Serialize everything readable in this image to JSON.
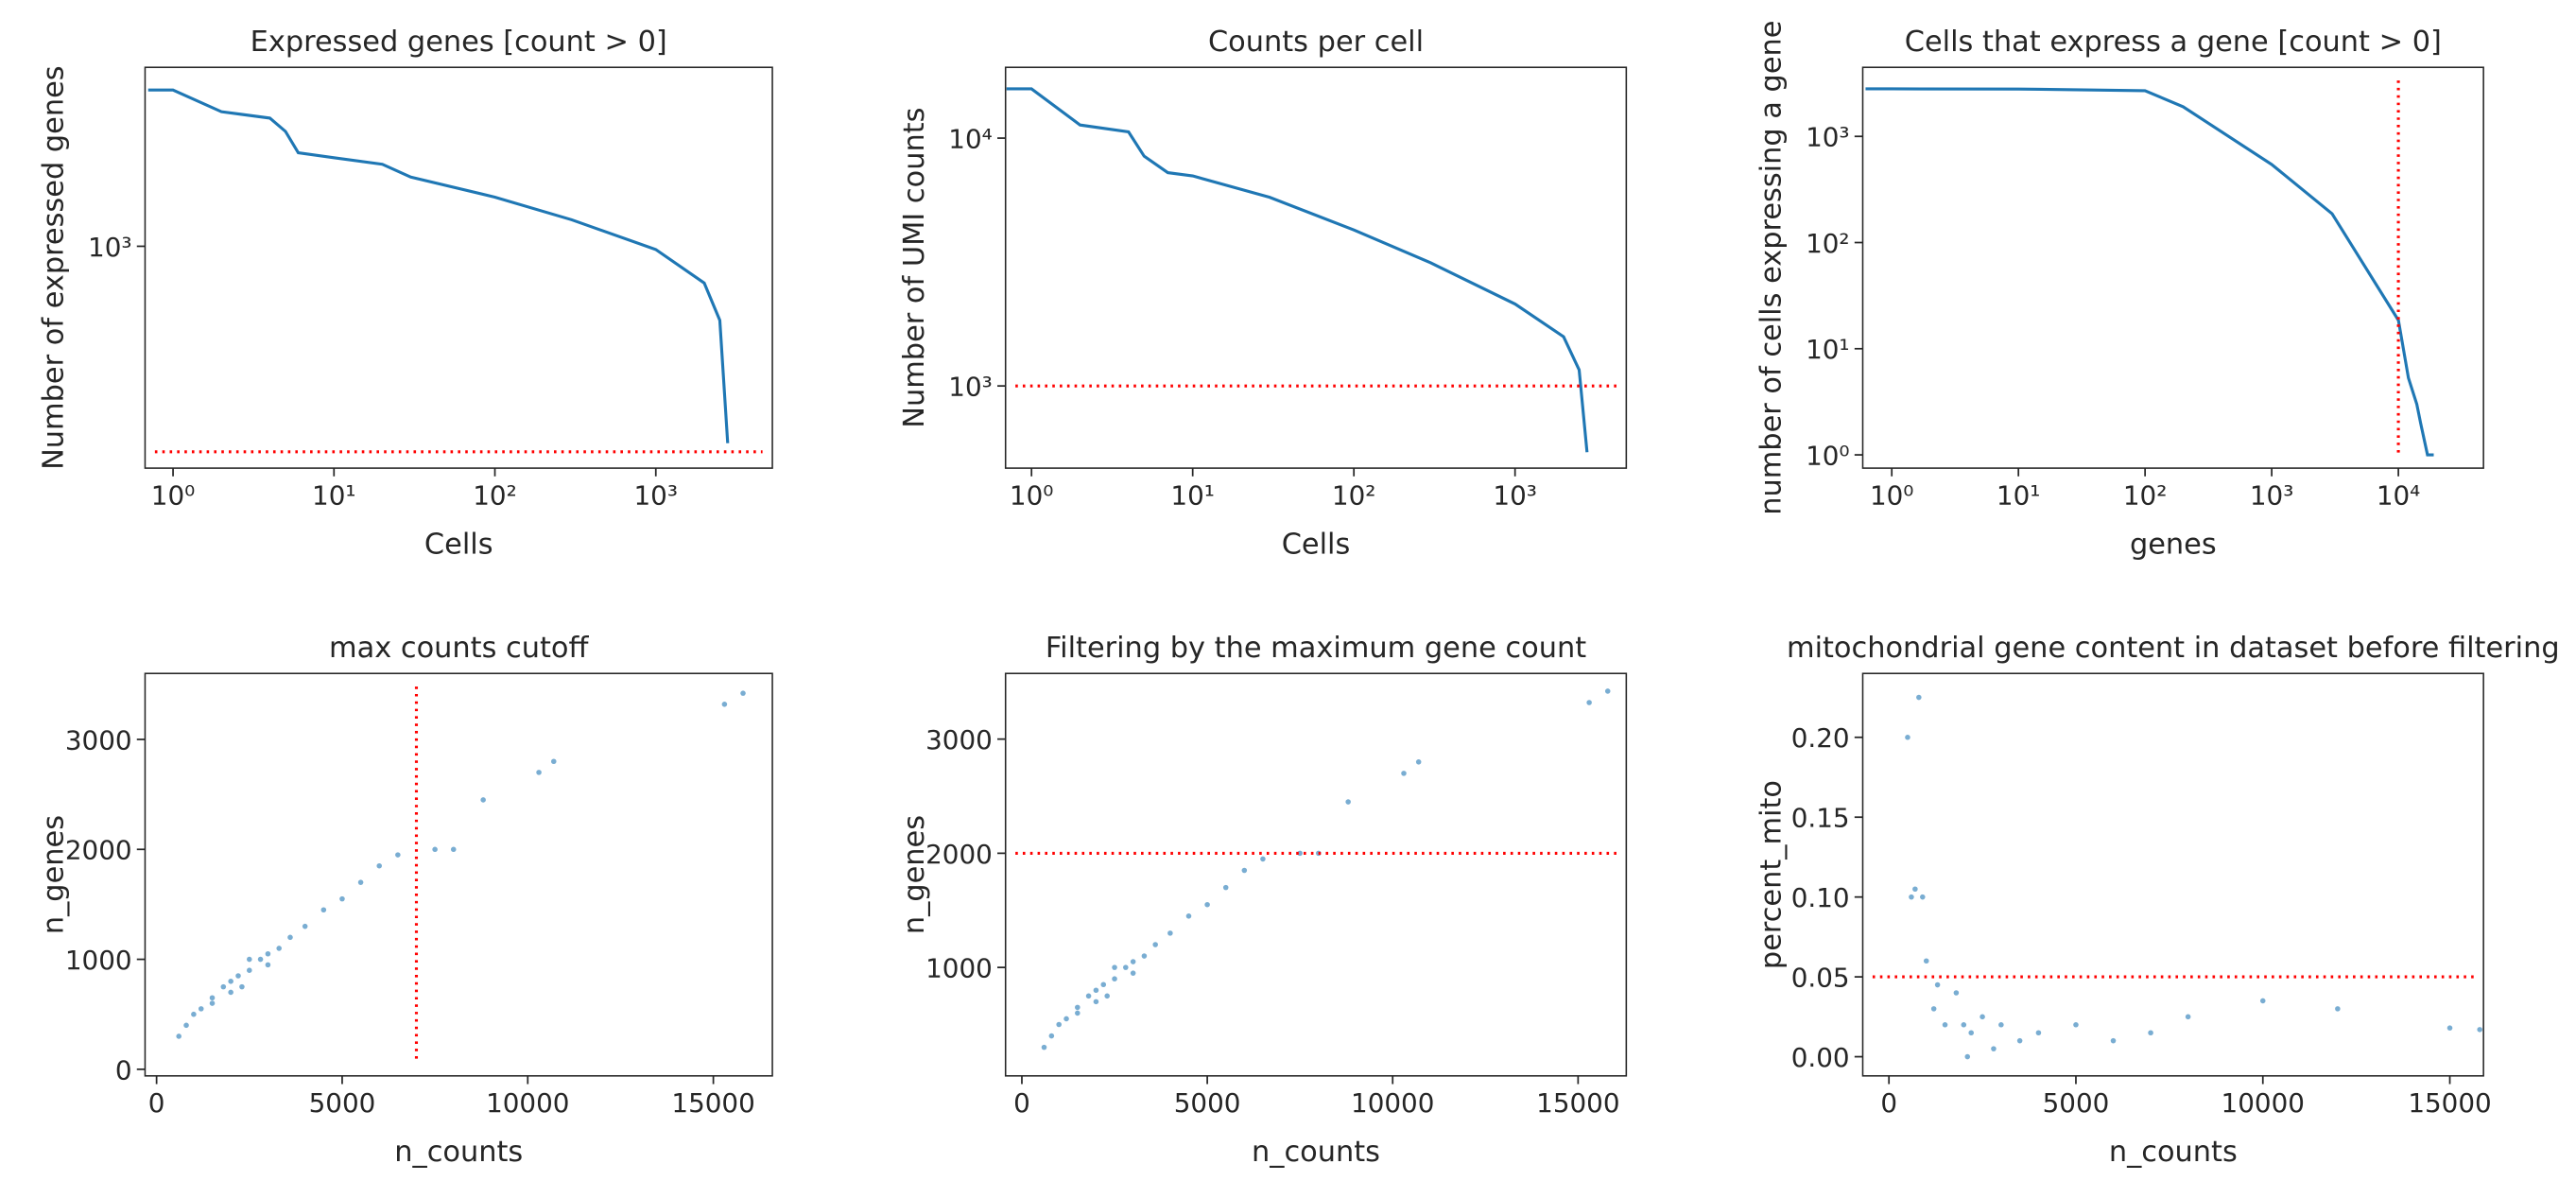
{
  "chart_data": [
    {
      "type": "line",
      "title": "Expressed genes [count > 0]",
      "x_label": "Cells",
      "y_label": "Number of expressed genes",
      "xscale": "log",
      "yscale": "log",
      "xlim": [
        0.67,
        5300
      ],
      "ylim": [
        176,
        4060
      ],
      "xticks": [
        {
          "value": 1,
          "label": "10⁰"
        },
        {
          "value": 10,
          "label": "10¹"
        },
        {
          "value": 100,
          "label": "10²"
        },
        {
          "value": 1000,
          "label": "10³"
        }
      ],
      "yticks": [
        {
          "value": 1000,
          "label": "10³"
        }
      ],
      "color": "#1f77b4",
      "x": [
        0.7,
        1,
        2,
        4,
        5,
        6,
        10,
        20,
        30,
        100,
        300,
        1000,
        2000,
        2500,
        2800
      ],
      "values": [
        3400,
        3400,
        2870,
        2730,
        2460,
        2080,
        2000,
        1900,
        1720,
        1470,
        1230,
        975,
        750,
        560,
        214
      ],
      "ref_lines": [
        {
          "orientation": "h",
          "value": 200,
          "color": "#ff0000"
        }
      ]
    },
    {
      "type": "line",
      "title": "Counts per cell",
      "x_label": "Cells",
      "y_label": "Number of UMI counts",
      "xscale": "log",
      "yscale": "log",
      "xlim": [
        0.69,
        4900
      ],
      "ylim": [
        466,
        19300
      ],
      "xticks": [
        {
          "value": 1,
          "label": "10⁰"
        },
        {
          "value": 10,
          "label": "10¹"
        },
        {
          "value": 100,
          "label": "10²"
        },
        {
          "value": 1000,
          "label": "10³"
        }
      ],
      "yticks": [
        {
          "value": 1000,
          "label": "10³"
        },
        {
          "value": 10000,
          "label": "10⁴"
        }
      ],
      "color": "#1f77b4",
      "x": [
        0.7,
        1,
        2,
        4,
        5,
        7,
        10,
        30,
        100,
        300,
        1000,
        2000,
        2500,
        2800
      ],
      "values": [
        15800,
        15800,
        11300,
        10600,
        8450,
        7260,
        7040,
        5770,
        4260,
        3140,
        2140,
        1580,
        1160,
        540
      ],
      "ref_lines": [
        {
          "orientation": "h",
          "value": 1000,
          "color": "#ff0000"
        }
      ]
    },
    {
      "type": "line",
      "title": "Cells that express a gene [count > 0]",
      "x_label": "genes",
      "y_label": "number of cells expressing a gene",
      "xscale": "log",
      "yscale": "log",
      "xlim": [
        0.59,
        47000
      ],
      "ylim": [
        0.75,
        4470
      ],
      "xticks": [
        {
          "value": 1,
          "label": "10⁰"
        },
        {
          "value": 10,
          "label": "10¹"
        },
        {
          "value": 100,
          "label": "10²"
        },
        {
          "value": 1000,
          "label": "10³"
        },
        {
          "value": 10000,
          "label": "10⁴"
        }
      ],
      "yticks": [
        {
          "value": 1,
          "label": "10⁰"
        },
        {
          "value": 10,
          "label": "10¹"
        },
        {
          "value": 100,
          "label": "10²"
        },
        {
          "value": 1000,
          "label": "10³"
        }
      ],
      "color": "#1f77b4",
      "x": [
        0.62,
        1,
        10,
        100,
        200,
        1000,
        3000,
        10000,
        12000,
        14000,
        15000,
        17000,
        19000
      ],
      "values": [
        2800,
        2800,
        2790,
        2700,
        1900,
        545,
        187,
        18.5,
        5.3,
        3,
        2,
        1,
        1
      ],
      "ref_lines": [
        {
          "orientation": "v",
          "value": 10000,
          "color": "#ff0000"
        }
      ]
    },
    {
      "type": "scatter",
      "title": "max counts cutoff",
      "x_label": "n_counts",
      "y_label": "n_genes",
      "xlim": [
        -310,
        16590
      ],
      "ylim": [
        -60,
        3600
      ],
      "xticks": [
        0,
        5000,
        10000,
        15000
      ],
      "yticks": [
        0,
        1000,
        2000,
        3000
      ],
      "color": "#1f77b4",
      "x": [
        600,
        800,
        1000,
        1200,
        1500,
        1500,
        1800,
        2000,
        2000,
        2200,
        2300,
        2500,
        2500,
        2800,
        3000,
        3000,
        3300,
        3600,
        4000,
        4500,
        5000,
        5500,
        6000,
        6500,
        7500,
        8000,
        8800,
        10300,
        10700,
        15300,
        15800
      ],
      "values": [
        300,
        400,
        500,
        550,
        650,
        600,
        750,
        800,
        700,
        850,
        750,
        900,
        1000,
        1000,
        1050,
        950,
        1100,
        1200,
        1300,
        1450,
        1550,
        1700,
        1850,
        1950,
        2000,
        2000,
        2450,
        2700,
        2800,
        3320,
        3420
      ],
      "ref_lines": [
        {
          "orientation": "v",
          "value": 7000,
          "color": "#ff0000"
        }
      ]
    },
    {
      "type": "scatter",
      "title": "Filtering by the maximum gene count",
      "x_label": "n_counts",
      "y_label": "n_genes",
      "xlim": [
        -440,
        16300
      ],
      "ylim": [
        50,
        3575
      ],
      "xticks": [
        0,
        5000,
        10000,
        15000
      ],
      "yticks": [
        1000,
        2000,
        3000
      ],
      "color": "#1f77b4",
      "x": [
        600,
        800,
        1000,
        1200,
        1500,
        1500,
        1800,
        2000,
        2000,
        2200,
        2300,
        2500,
        2500,
        2800,
        3000,
        3000,
        3300,
        3600,
        4000,
        4500,
        5000,
        5500,
        6000,
        6500,
        7500,
        8000,
        8800,
        10300,
        10700,
        15300,
        15800
      ],
      "values": [
        300,
        400,
        500,
        550,
        650,
        600,
        750,
        800,
        700,
        850,
        750,
        900,
        1000,
        1000,
        1050,
        950,
        1100,
        1200,
        1300,
        1450,
        1550,
        1700,
        1850,
        1950,
        2000,
        2000,
        2450,
        2700,
        2800,
        3320,
        3420
      ],
      "ref_lines": [
        {
          "orientation": "h",
          "value": 2000,
          "color": "#ff0000"
        }
      ]
    },
    {
      "type": "scatter",
      "title": "mitochondrial gene content in dataset before filtering",
      "x_label": "n_counts",
      "y_label": "percent_mito",
      "xlim": [
        -700,
        15900
      ],
      "ylim": [
        -0.012,
        0.24
      ],
      "xticks": [
        0,
        5000,
        10000,
        15000
      ],
      "yticks": [
        {
          "value": 0,
          "label": "0.00"
        },
        {
          "value": 0.05,
          "label": "0.05"
        },
        {
          "value": 0.1,
          "label": "0.10"
        },
        {
          "value": 0.15,
          "label": "0.15"
        },
        {
          "value": 0.2,
          "label": "0.20"
        }
      ],
      "color": "#1f77b4",
      "x": [
        500,
        800,
        600,
        700,
        900,
        1000,
        1200,
        1300,
        1500,
        1800,
        2000,
        2100,
        2200,
        2500,
        2800,
        3000,
        3500,
        4000,
        5000,
        6000,
        7000,
        8000,
        10000,
        12000,
        15000,
        15800
      ],
      "values": [
        0.2,
        0.225,
        0.1,
        0.105,
        0.1,
        0.06,
        0.03,
        0.045,
        0.02,
        0.04,
        0.02,
        0,
        0.015,
        0.025,
        0.005,
        0.02,
        0.01,
        0.015,
        0.02,
        0.01,
        0.015,
        0.025,
        0.035,
        0.03,
        0.018,
        0.017
      ],
      "ref_lines": [
        {
          "orientation": "h",
          "value": 0.05,
          "color": "#ff0000"
        }
      ]
    }
  ]
}
